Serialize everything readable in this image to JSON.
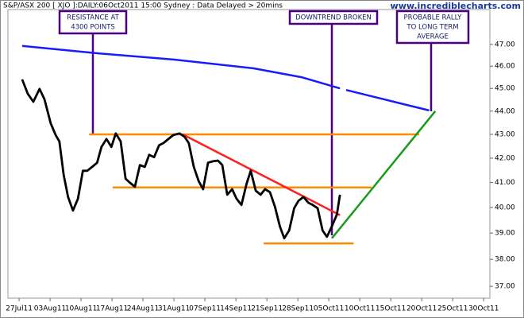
{
  "chart_data": {
    "type": "line",
    "title": "S&P/ASX 200 [ XJO ]:DAILY:06Oct2011 15:00 Sydney : Data Delayed > 20mins",
    "source": "www.incrediblecharts.com",
    "log_scale": true,
    "xlim": [
      -1.8,
      76
    ],
    "ylim": [
      36.57,
      48.65
    ],
    "xticks": [
      {
        "value": 0,
        "label": "27Jul11"
      },
      {
        "value": 5,
        "label": "03Aug11"
      },
      {
        "value": 10,
        "label": "10Aug11"
      },
      {
        "value": 15,
        "label": "17Aug11"
      },
      {
        "value": 20,
        "label": "24Aug11"
      },
      {
        "value": 25,
        "label": "31Aug11"
      },
      {
        "value": 30,
        "label": "07Sep11"
      },
      {
        "value": 35,
        "label": "14Sep11"
      },
      {
        "value": 40,
        "label": "21Sep11"
      },
      {
        "value": 45,
        "label": "28Sep11"
      },
      {
        "value": 50,
        "label": "05Oct11"
      },
      {
        "value": 55,
        "label": "10Oct11"
      },
      {
        "value": 60,
        "label": "15Oct11"
      },
      {
        "value": 65,
        "label": "20Oct11"
      },
      {
        "value": 70,
        "label": "25Oct11"
      },
      {
        "value": 75,
        "label": "30Oct11"
      }
    ],
    "yticks": [
      {
        "value": 37,
        "label": "37.00"
      },
      {
        "value": 38,
        "label": "38.00"
      },
      {
        "value": 39,
        "label": "39.00"
      },
      {
        "value": 40,
        "label": "40.00"
      },
      {
        "value": 41,
        "label": "41.00"
      },
      {
        "value": 42,
        "label": "42.00"
      },
      {
        "value": 43,
        "label": "43.00"
      },
      {
        "value": 44,
        "label": "44.00"
      },
      {
        "value": 45,
        "label": "45.00"
      },
      {
        "value": 46,
        "label": "46.00"
      },
      {
        "value": 47,
        "label": "47.00"
      }
    ],
    "series": [
      {
        "color": "#000000",
        "x": [
          0.5,
          1.4,
          2.3,
          3.3,
          4.1,
          5.1,
          5.9,
          6.5,
          7.2,
          7.9,
          8.7,
          9.5,
          10.3,
          11.0,
          11.8,
          12.6,
          13.3,
          14.1,
          14.9,
          15.6,
          16.4,
          17.2,
          17.9,
          18.7,
          19.5,
          20.3,
          21.0,
          21.8,
          22.6,
          23.3,
          24.1,
          24.9,
          25.9,
          26.7,
          27.4,
          28.2,
          29.0,
          29.7,
          30.5,
          31.3,
          32.1,
          32.8,
          33.6,
          34.4,
          35.1,
          35.9,
          36.7,
          37.4,
          38.2,
          39.0,
          39.7,
          40.5,
          41.3,
          42.1,
          42.8,
          43.6,
          44.4,
          45.1,
          45.9,
          46.7,
          47.4,
          48.2,
          49.0,
          49.7,
          50.5,
          51.3,
          51.8
        ],
        "values": [
          45.4,
          44.76,
          44.41,
          44.98,
          44.52,
          43.48,
          42.97,
          42.7,
          41.31,
          40.42,
          39.88,
          40.35,
          41.48,
          41.48,
          41.64,
          41.81,
          42.47,
          42.8,
          42.47,
          43.04,
          42.7,
          41.15,
          40.99,
          40.83,
          41.71,
          41.64,
          42.14,
          42.04,
          42.54,
          42.63,
          42.8,
          42.97,
          43.04,
          42.9,
          42.63,
          41.64,
          41.05,
          40.73,
          41.81,
          41.87,
          41.9,
          41.71,
          40.51,
          40.73,
          40.35,
          40.1,
          40.93,
          41.48,
          40.67,
          40.51,
          40.73,
          40.61,
          40.03,
          39.26,
          38.8,
          39.1,
          39.97,
          40.26,
          40.42,
          40.19,
          40.1,
          39.97,
          39.1,
          38.86,
          39.26,
          39.72,
          40.51
        ]
      },
      {
        "color": "#1a1aff",
        "x": [
          0.5,
          12.3,
          25.1,
          37.9,
          45.6,
          51.8,
          null,
          52.8,
          66.2
        ],
        "values": [
          46.93,
          46.6,
          46.3,
          45.9,
          45.5,
          45.0,
          null,
          44.93,
          44.03
        ]
      }
    ],
    "lines": [
      {
        "color": "#ff8c00",
        "x": [
          11.3,
          64.6
        ],
        "values": [
          43.0,
          43.0
        ]
      },
      {
        "color": "#ff8c00",
        "x": [
          15.1,
          56.9
        ],
        "values": [
          40.8,
          40.8
        ]
      },
      {
        "color": "#ff8c00",
        "x": [
          39.5,
          54.0
        ],
        "values": [
          38.6,
          38.6
        ]
      },
      {
        "color": "#ff2020",
        "x": [
          26.4,
          51.8
        ],
        "values": [
          43.0,
          39.7
        ]
      },
      {
        "color": "#1a9a1a",
        "x": [
          50.5,
          67.2
        ],
        "values": [
          38.8,
          44.0
        ]
      }
    ],
    "annotations": [
      {
        "lines": [
          "RESISTANCE AT",
          "4300 POINTS"
        ]
      },
      {
        "lines": [
          "DOWNTREND BROKEN"
        ]
      },
      {
        "lines": [
          "PROBABLE RALLY",
          "TO LONG TERM",
          "AVERAGE"
        ]
      }
    ]
  }
}
